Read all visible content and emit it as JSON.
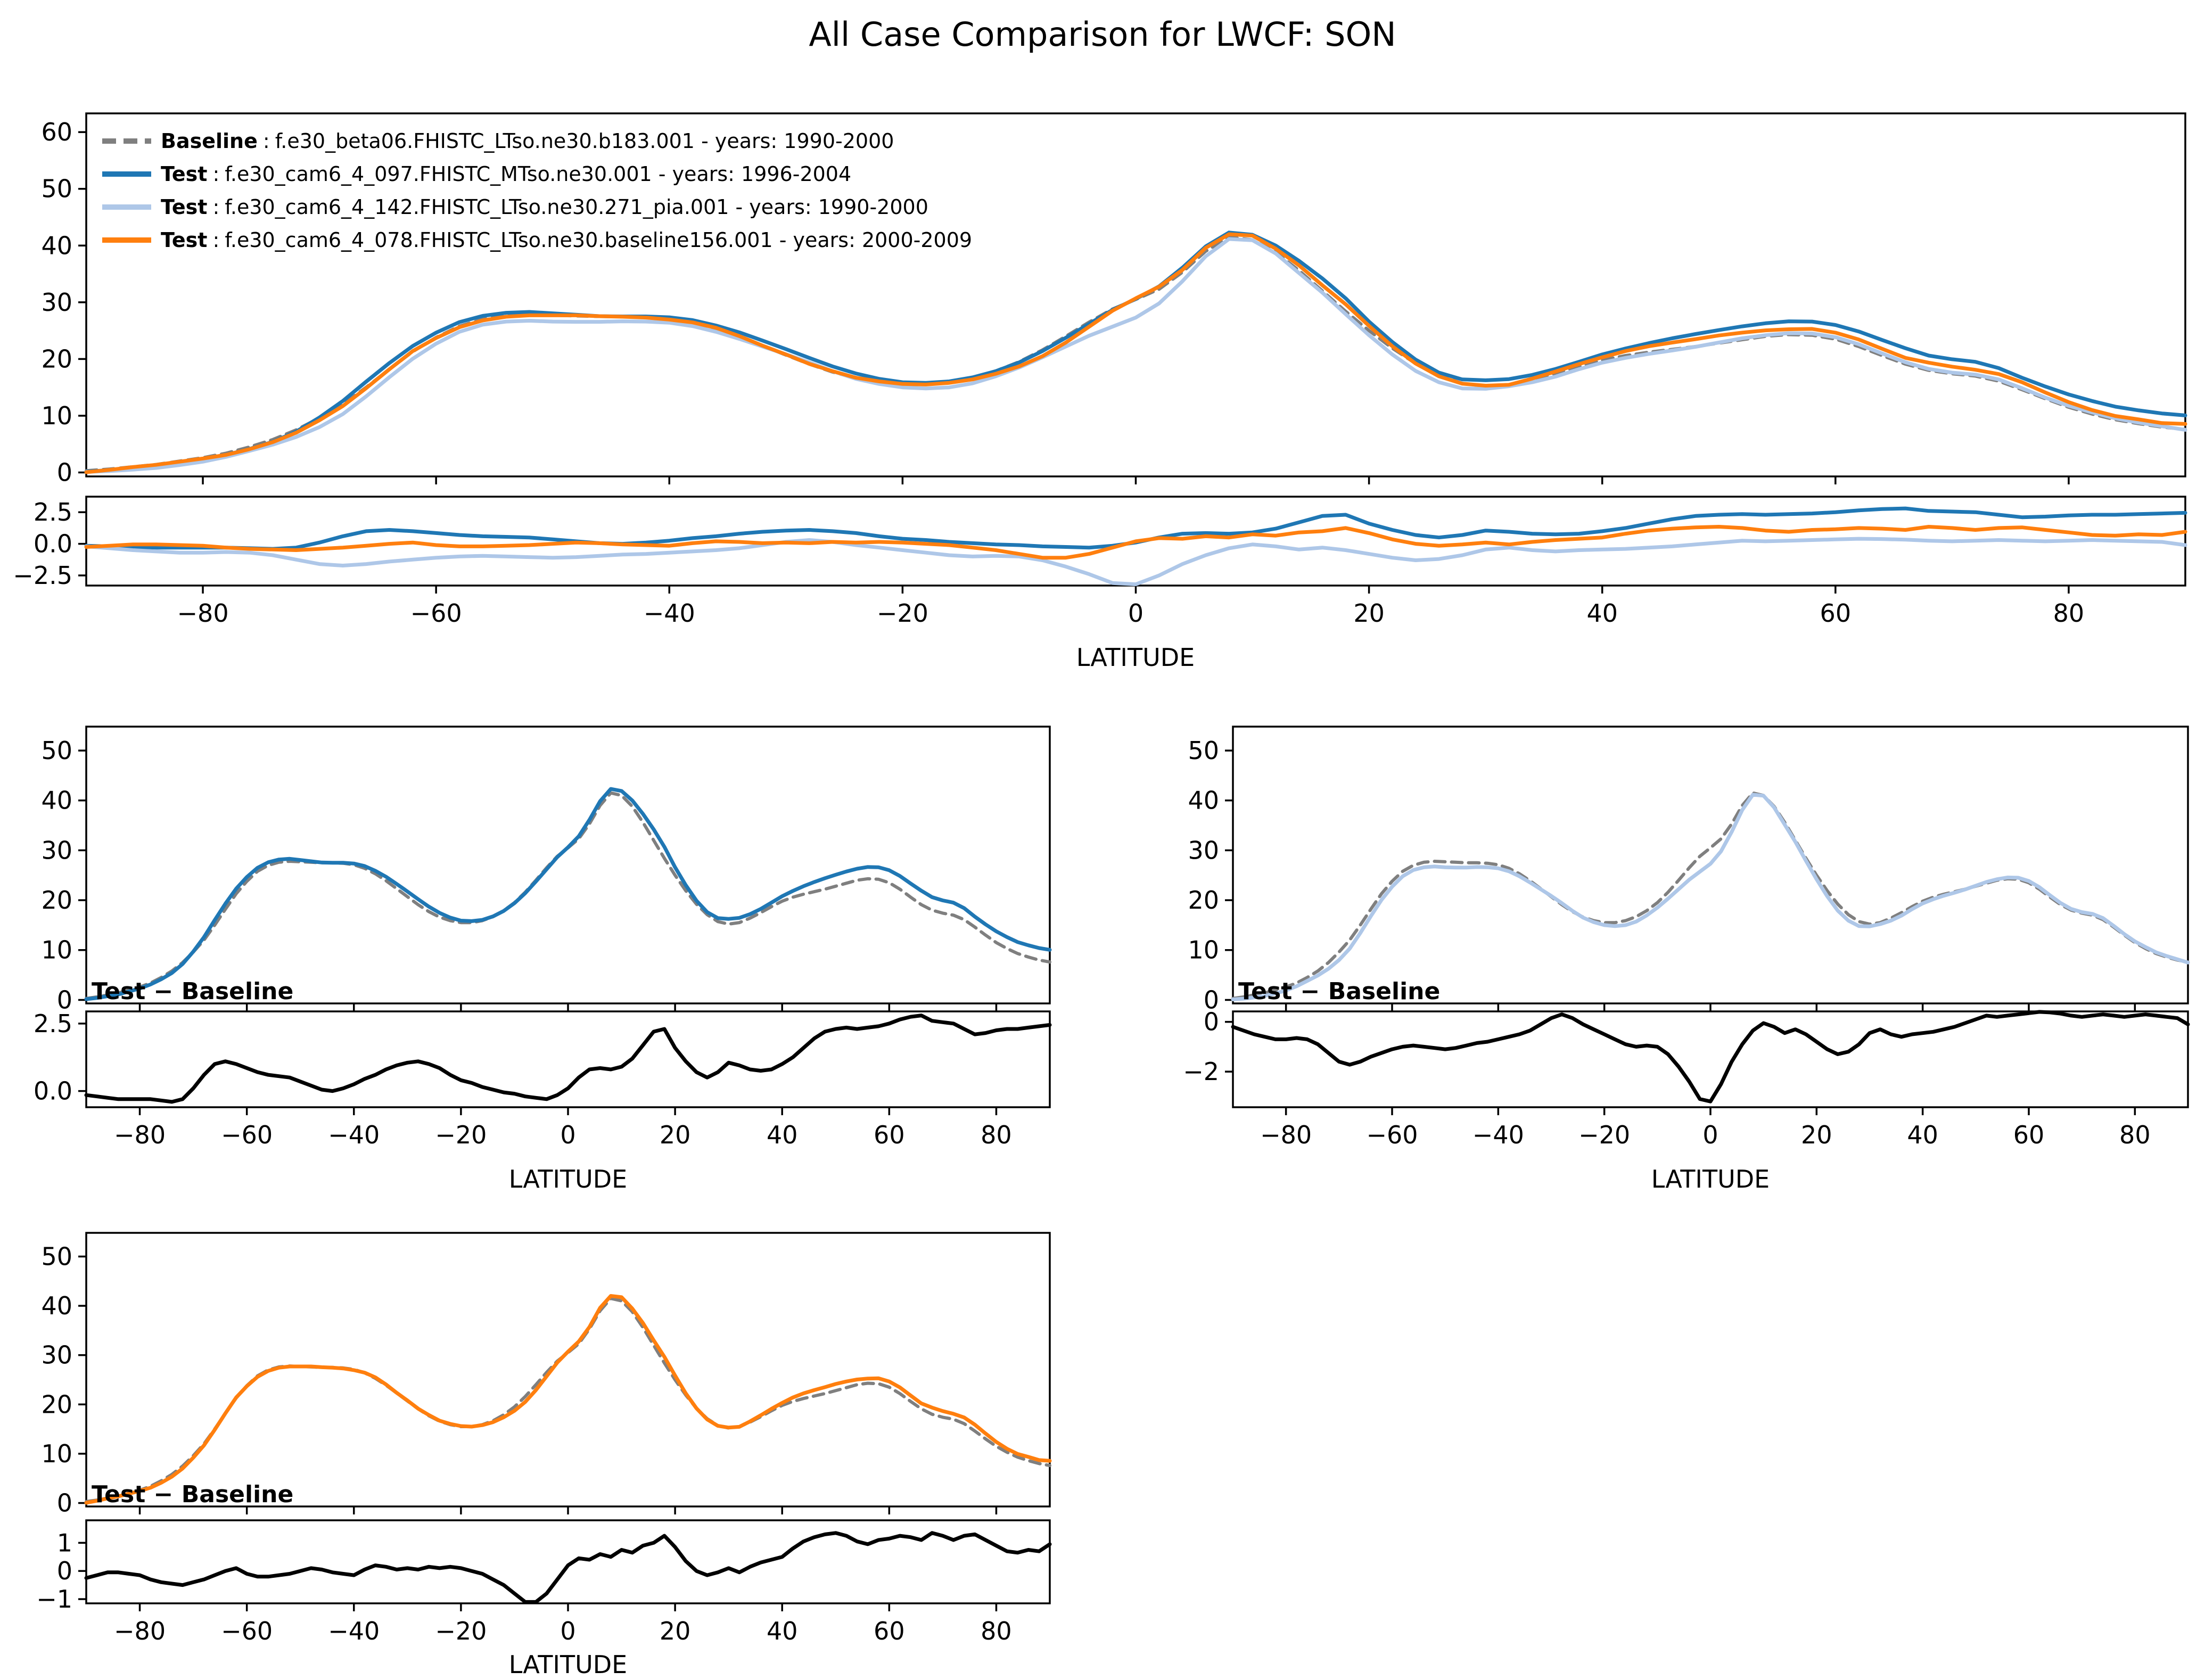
{
  "title": "All Case Comparison for LWCF: SON",
  "legend": {
    "separator": ":",
    "items": [
      {
        "label": "Baseline",
        "text": "f.e30_beta06.FHISTC_LTso.ne30.b183.001 - years: 1990-2000",
        "color": "#7f7f7f",
        "dashed": true
      },
      {
        "label": "Test",
        "text": "f.e30_cam6_4_097.FHISTC_MTso.ne30.001 - years: 1996-2004",
        "color": "#1f77b4",
        "dashed": false
      },
      {
        "label": "Test",
        "text": "f.e30_cam6_4_142.FHISTC_LTso.ne30.271_pia.001 - years: 1990-2000",
        "color": "#aec7e8",
        "dashed": false
      },
      {
        "label": "Test",
        "text": "f.e30_cam6_4_078.FHISTC_LTso.ne30.baseline156.001 - years: 2000-2009",
        "color": "#ff7f0e",
        "dashed": false
      }
    ]
  },
  "chart_data": {
    "type": "line",
    "title": "All Case Comparison for LWCF: SON",
    "x_label": "LATITUDE",
    "overlay_label": "Test − Baseline",
    "grid": false,
    "legend_position": "upper left",
    "x_lim": [
      -90,
      90
    ],
    "x_ticks": [
      -80,
      -60,
      -40,
      -20,
      0,
      20,
      40,
      60,
      80
    ],
    "x_tick_labels": [
      "−80",
      "−60",
      "−40",
      "−20",
      "0",
      "20",
      "40",
      "60",
      "80"
    ],
    "derivation": "test curve values = baseline values + diff values; diff panels plot the diff values",
    "latitudes": [
      -90,
      -88,
      -86,
      -84,
      -82,
      -80,
      -78,
      -76,
      -74,
      -72,
      -70,
      -68,
      -66,
      -64,
      -62,
      -60,
      -58,
      -56,
      -54,
      -52,
      -50,
      -48,
      -46,
      -44,
      -42,
      -40,
      -38,
      -36,
      -34,
      -32,
      -30,
      -28,
      -26,
      -24,
      -22,
      -20,
      -18,
      -16,
      -14,
      -12,
      -10,
      -8,
      -6,
      -4,
      -2,
      0,
      2,
      4,
      6,
      8,
      10,
      12,
      14,
      16,
      18,
      20,
      22,
      24,
      26,
      28,
      30,
      32,
      34,
      36,
      38,
      40,
      42,
      44,
      46,
      48,
      50,
      52,
      54,
      56,
      58,
      60,
      62,
      64,
      66,
      68,
      70,
      72,
      74,
      76,
      78,
      80,
      82,
      84,
      86,
      88,
      90
    ],
    "series": [
      {
        "id": "baseline",
        "role": "baseline",
        "color": "#7f7f7f",
        "dashed": true,
        "values": [
          0.3,
          0.6,
          1.0,
          1.4,
          2.0,
          2.6,
          3.4,
          4.5,
          5.8,
          7.5,
          9.6,
          12.0,
          15.0,
          18.2,
          21.3,
          23.8,
          25.8,
          27.0,
          27.6,
          27.8,
          27.7,
          27.6,
          27.5,
          27.5,
          27.4,
          27.1,
          26.4,
          25.3,
          23.9,
          22.3,
          20.7,
          19.1,
          17.7,
          16.6,
          15.9,
          15.5,
          15.5,
          15.9,
          16.7,
          17.9,
          19.5,
          21.6,
          24.0,
          26.5,
          28.8,
          30.5,
          32.3,
          35.3,
          39.0,
          41.5,
          41.0,
          38.8,
          35.6,
          32.0,
          28.4,
          25.0,
          21.9,
          19.2,
          17.1,
          15.7,
          15.2,
          15.5,
          16.4,
          17.5,
          18.7,
          19.8,
          20.6,
          21.2,
          21.7,
          22.2,
          22.8,
          23.4,
          24.0,
          24.3,
          24.2,
          23.5,
          22.2,
          20.6,
          19.1,
          18.0,
          17.4,
          17.0,
          16.1,
          14.6,
          13.0,
          11.5,
          10.3,
          9.3,
          8.6,
          8.0,
          7.6
        ]
      },
      {
        "id": "test_blue",
        "role": "test",
        "color": "#1f77b4",
        "dashed": false,
        "diff": [
          -0.15,
          -0.2,
          -0.25,
          -0.3,
          -0.3,
          -0.3,
          -0.3,
          -0.35,
          -0.4,
          -0.3,
          0.1,
          0.6,
          1.0,
          1.1,
          1.0,
          0.85,
          0.7,
          0.6,
          0.55,
          0.5,
          0.35,
          0.2,
          0.05,
          0.0,
          0.1,
          0.25,
          0.45,
          0.6,
          0.8,
          0.95,
          1.05,
          1.1,
          1.0,
          0.85,
          0.6,
          0.4,
          0.3,
          0.15,
          0.05,
          -0.05,
          -0.1,
          -0.2,
          -0.25,
          -0.3,
          -0.15,
          0.1,
          0.5,
          0.8,
          0.85,
          0.8,
          0.9,
          1.2,
          1.7,
          2.2,
          2.3,
          1.6,
          1.1,
          0.7,
          0.5,
          0.7,
          1.05,
          0.95,
          0.8,
          0.75,
          0.8,
          1.0,
          1.25,
          1.6,
          1.95,
          2.2,
          2.3,
          2.35,
          2.3,
          2.35,
          2.4,
          2.5,
          2.65,
          2.75,
          2.8,
          2.6,
          2.55,
          2.5,
          2.3,
          2.1,
          2.15,
          2.25,
          2.3,
          2.3,
          2.35,
          2.4,
          2.45
        ]
      },
      {
        "id": "test_lightblue",
        "role": "test",
        "color": "#aec7e8",
        "dashed": false,
        "diff": [
          -0.2,
          -0.35,
          -0.5,
          -0.6,
          -0.7,
          -0.7,
          -0.65,
          -0.7,
          -0.9,
          -1.25,
          -1.6,
          -1.72,
          -1.6,
          -1.4,
          -1.25,
          -1.1,
          -1.0,
          -0.95,
          -1.0,
          -1.05,
          -1.1,
          -1.05,
          -0.95,
          -0.85,
          -0.8,
          -0.7,
          -0.6,
          -0.5,
          -0.35,
          -0.1,
          0.15,
          0.3,
          0.15,
          -0.1,
          -0.3,
          -0.5,
          -0.7,
          -0.9,
          -1.0,
          -0.95,
          -1.0,
          -1.3,
          -1.8,
          -2.4,
          -3.1,
          -3.2,
          -2.5,
          -1.6,
          -0.9,
          -0.35,
          -0.05,
          -0.2,
          -0.45,
          -0.3,
          -0.5,
          -0.8,
          -1.1,
          -1.3,
          -1.2,
          -0.9,
          -0.45,
          -0.3,
          -0.5,
          -0.6,
          -0.5,
          -0.45,
          -0.4,
          -0.3,
          -0.2,
          -0.05,
          0.1,
          0.25,
          0.2,
          0.25,
          0.3,
          0.35,
          0.4,
          0.38,
          0.33,
          0.25,
          0.2,
          0.25,
          0.3,
          0.25,
          0.2,
          0.25,
          0.3,
          0.25,
          0.2,
          0.15,
          -0.1
        ]
      },
      {
        "id": "test_orange",
        "role": "test",
        "color": "#ff7f0e",
        "dashed": false,
        "diff": [
          -0.25,
          -0.15,
          -0.05,
          -0.05,
          -0.1,
          -0.15,
          -0.3,
          -0.4,
          -0.45,
          -0.5,
          -0.4,
          -0.3,
          -0.15,
          0.0,
          0.1,
          -0.1,
          -0.2,
          -0.2,
          -0.15,
          -0.1,
          0.0,
          0.1,
          0.05,
          -0.05,
          -0.1,
          -0.15,
          0.05,
          0.2,
          0.15,
          0.05,
          0.1,
          0.05,
          0.15,
          0.1,
          0.15,
          0.1,
          0.0,
          -0.1,
          -0.3,
          -0.5,
          -0.8,
          -1.1,
          -1.1,
          -0.8,
          -0.3,
          0.2,
          0.45,
          0.4,
          0.6,
          0.5,
          0.75,
          0.65,
          0.9,
          1.0,
          1.25,
          0.85,
          0.35,
          0.0,
          -0.15,
          -0.05,
          0.1,
          -0.05,
          0.15,
          0.3,
          0.4,
          0.5,
          0.8,
          1.05,
          1.2,
          1.3,
          1.35,
          1.25,
          1.05,
          0.95,
          1.1,
          1.15,
          1.25,
          1.2,
          1.1,
          1.35,
          1.25,
          1.1,
          1.25,
          1.3,
          1.1,
          0.9,
          0.7,
          0.65,
          0.75,
          0.7,
          0.95
        ]
      }
    ],
    "panels": {
      "top_main": {
        "y_lim": [
          -0.7,
          63.3
        ],
        "y_ticks": [
          0,
          10,
          20,
          30,
          40,
          50,
          60
        ],
        "y_tick_labels": [
          "0",
          "10",
          "20",
          "30",
          "40",
          "50",
          "60"
        ]
      },
      "top_diff": {
        "y_lim": [
          -3.3,
          3.73
        ],
        "y_ticks": [
          -2.5,
          0,
          2.5
        ],
        "y_tick_labels": [
          "−2.5",
          "0.0",
          "2.5"
        ]
      },
      "sub_main": {
        "y_lim": [
          -0.7,
          54.8
        ],
        "y_ticks": [
          0,
          10,
          20,
          30,
          40,
          50
        ],
        "y_tick_labels": [
          "0",
          "10",
          "20",
          "30",
          "40",
          "50"
        ]
      },
      "diff_test_blue": {
        "y_lim": [
          -0.6,
          2.95
        ],
        "y_ticks": [
          0,
          2.5
        ],
        "y_tick_labels": [
          "0.0",
          "2.5"
        ]
      },
      "diff_test_lightblue": {
        "y_lim": [
          -3.43,
          0.42
        ],
        "y_ticks": [
          -2,
          0
        ],
        "y_tick_labels": [
          "−2",
          "0"
        ]
      },
      "diff_test_orange": {
        "y_lim": [
          -1.15,
          1.8
        ],
        "y_ticks": [
          -1,
          0,
          1
        ],
        "y_tick_labels": [
          "−1",
          "0",
          "1"
        ]
      }
    },
    "diff_line_color": "#000000"
  }
}
